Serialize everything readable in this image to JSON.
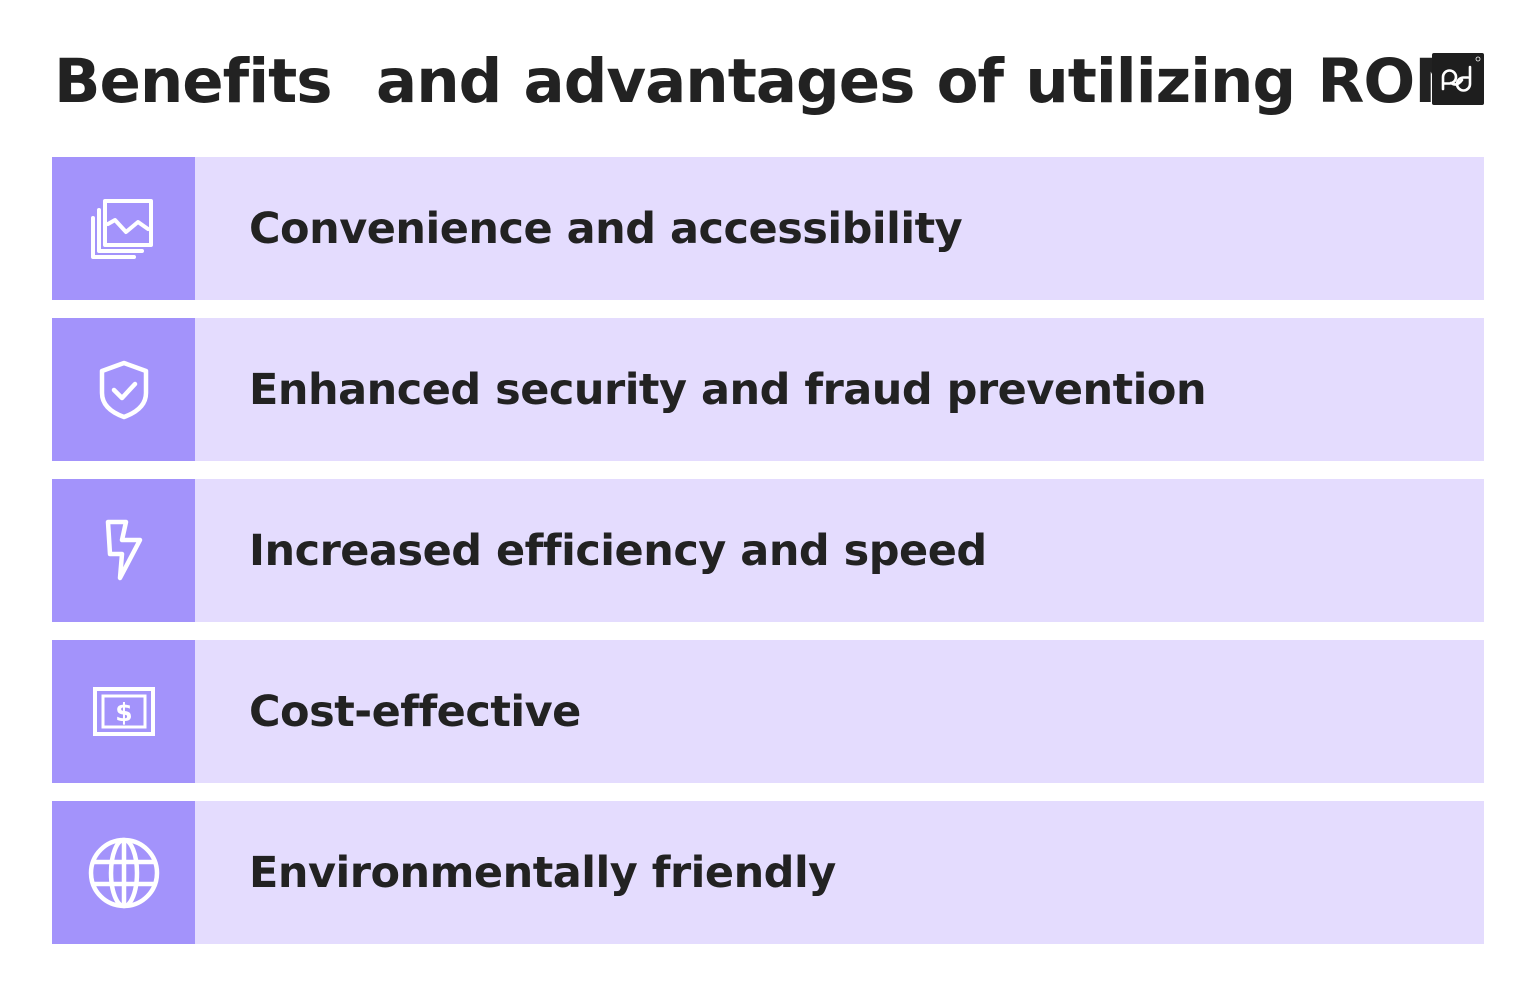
{
  "title": "Benefits  and advantages of utilizing RON",
  "logo": {
    "icon": "pd-logo-icon",
    "background": "#1e1e1e"
  },
  "colors": {
    "row_background": "#e4dcfe",
    "icon_background": "#a393fb",
    "text": "#222222"
  },
  "benefits": [
    {
      "label": "Convenience and accessibility",
      "icon": "gallery-chart-icon"
    },
    {
      "label": "Enhanced security and fraud prevention",
      "icon": "shield-check-icon"
    },
    {
      "label": "Increased efficiency and speed",
      "icon": "lightning-icon"
    },
    {
      "label": "Cost-effective",
      "icon": "dollar-bill-icon"
    },
    {
      "label": "Environmentally friendly",
      "icon": "globe-icon"
    }
  ]
}
